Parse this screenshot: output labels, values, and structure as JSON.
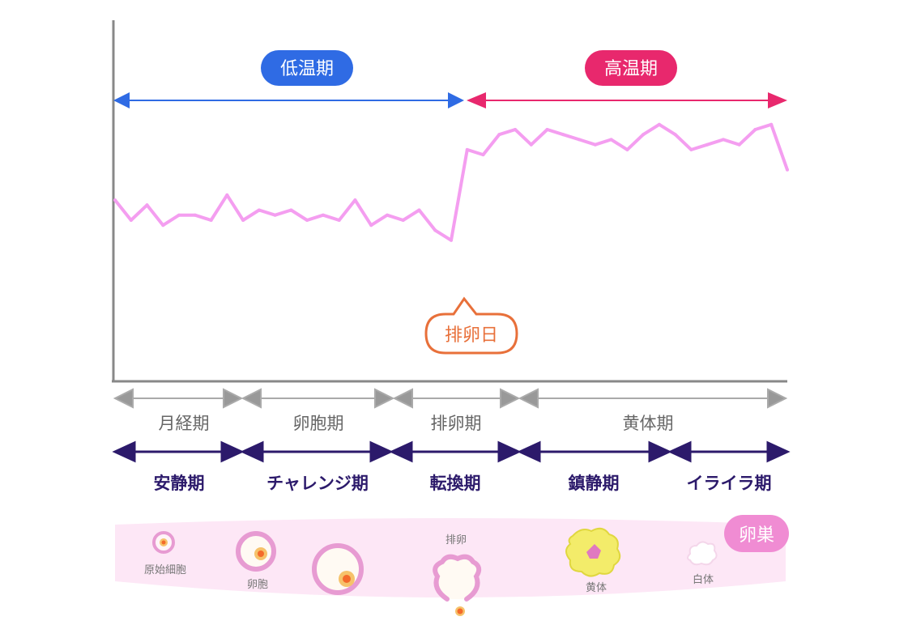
{
  "periods": {
    "low_label": "低温期",
    "high_label": "高温期",
    "low_color": "#2f6be4",
    "high_color": "#e8286d"
  },
  "chart_data": {
    "type": "line",
    "series_color": "#f49ef0",
    "ovulation_day_label": "排卵日",
    "ovulation_color": "#e8703a",
    "values": [
      0.86,
      0.82,
      0.85,
      0.81,
      0.83,
      0.83,
      0.82,
      0.87,
      0.82,
      0.84,
      0.83,
      0.84,
      0.82,
      0.83,
      0.82,
      0.86,
      0.81,
      0.83,
      0.82,
      0.84,
      0.8,
      0.78,
      0.96,
      0.95,
      0.99,
      1.0,
      0.97,
      1.0,
      0.99,
      0.98,
      0.97,
      0.98,
      0.96,
      0.99,
      1.01,
      0.99,
      0.96,
      0.97,
      0.98,
      0.97,
      1.0,
      1.01,
      0.92
    ]
  },
  "phases_top": [
    "月経期",
    "卵胞期",
    "排卵期",
    "黄体期"
  ],
  "phases_bottom": [
    "安静期",
    "チャレンジ期",
    "転換期",
    "鎮静期",
    "イライラ期"
  ],
  "ovary": {
    "title": "卵巣",
    "labels": {
      "primordial": "原始細胞",
      "follicle": "卵胞",
      "ovulation": "排卵",
      "corpus_luteum": "黄体",
      "corpus_albicans": "白体"
    }
  }
}
